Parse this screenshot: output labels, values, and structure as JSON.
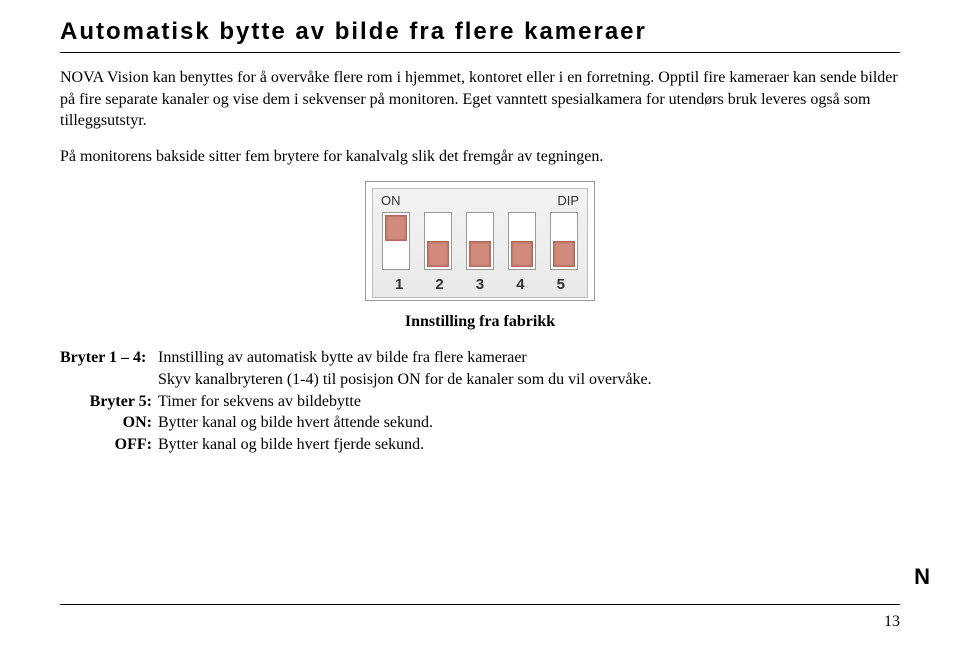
{
  "title": {
    "text": "Automatisk bytte av bilde fra flere kameraer",
    "fontsize": 24
  },
  "para1": "NOVA Vision kan benyttes for å overvåke flere rom i hjemmet, kontoret eller i en forretning. Opptil fire kameraer kan sende bilder på fire separate kanaler og vise dem i sekvenser på monitoren. Eget vanntett spesialkamera for utendørs bruk leveres også som tilleggsutstyr.",
  "para2": "På monitorens bakside sitter fem brytere for kanalvalg slik det fremgår av tegningen.",
  "dip": {
    "label_on": "ON",
    "label_dip": "DIP",
    "label_fontsize": 13,
    "numbers": [
      "1",
      "2",
      "3",
      "4",
      "5"
    ],
    "number_fontsize": 15,
    "positions": [
      "on",
      "off",
      "off",
      "off",
      "off"
    ],
    "slider_color": "#d18a7c",
    "border_color": "#999999",
    "background_color": "#f0f0f0"
  },
  "caption": {
    "text": "Innstilling fra fabrikk",
    "fontsize": 16
  },
  "entries": {
    "bryter14": {
      "label": "Bryter 1 – 4:",
      "line1": "Innstilling av automatisk bytte av bilde fra flere kameraer",
      "line2": "Skyv kanalbryteren (1-4) til posisjon ON for de kanaler som du vil overvåke."
    },
    "bryter5": {
      "label": "Bryter 5:",
      "text": "Timer for sekvens av bildebytte"
    },
    "on": {
      "label": "ON:",
      "text": "Bytter kanal og bilde hvert åttende sekund."
    },
    "off": {
      "label": "OFF:",
      "text": "Bytter kanal og bilde hvert fjerde sekund."
    },
    "fontsize": 16
  },
  "margin_letter": {
    "text": "N",
    "fontsize": 22
  },
  "page_number": {
    "text": "13",
    "fontsize": 16
  },
  "body_fontsize": 16
}
